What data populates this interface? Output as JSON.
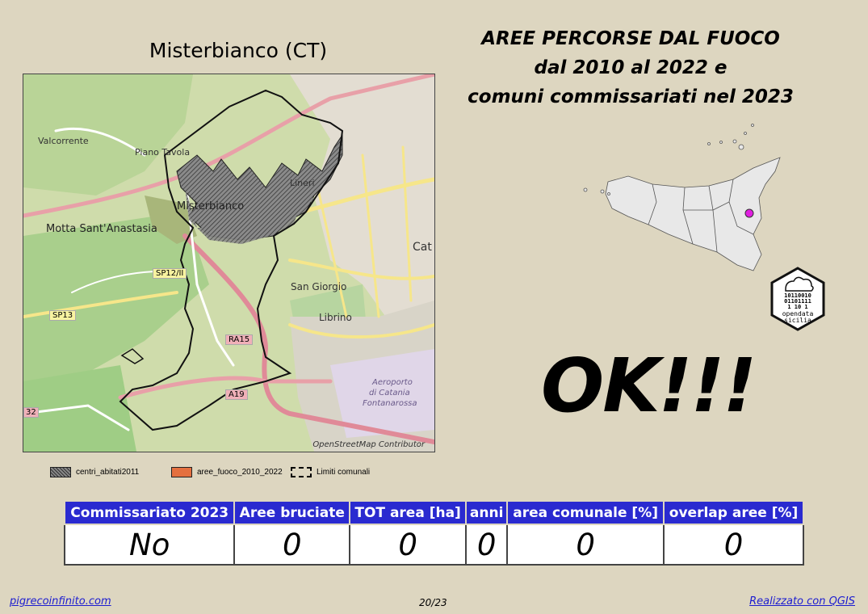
{
  "map": {
    "title": "Misterbianco (CT)",
    "credit": "OpenStreetMap Contributor",
    "place_labels": {
      "valcorrente": "Valcorrente",
      "piano_tavola": "Piano Tavola",
      "misterbianco": "Misterbianco",
      "motta": "Motta Sant'Anastasia",
      "lineri": "Lineri",
      "san_giorgio": "San Giorgio",
      "librino": "Librino",
      "catania": "Cat",
      "aeroporto_1": "Aeroporto",
      "aeroporto_2": "di Catania",
      "aeroporto_3": "Fontanarossa"
    },
    "road_labels": {
      "sp12": "SP12/II",
      "sp13": "SP13",
      "ra15": "RA15",
      "a19": "A19",
      "b2": "32"
    }
  },
  "legend": [
    {
      "label": "centri_abitati2011"
    },
    {
      "label": "aree_fuoco_2010_2022"
    },
    {
      "label": "Limiti comunali"
    }
  ],
  "title_lines": [
    "AREE PERCORSE DAL FUOCO",
    "dal 2010 al 2022 e",
    "comuni commissariati nel 2023"
  ],
  "logo": {
    "bits_1": "10110010",
    "bits_2": "01101111",
    "bits_3": "1   10 1",
    "name_1": "opendata",
    "name_2": "sicilia"
  },
  "status_text": "OK!!!",
  "table": {
    "headers": [
      "Commissariato 2023",
      "Aree bruciate",
      "TOT area [ha]",
      "anni",
      "area comunale [%]",
      "overlap aree [%]"
    ],
    "values": [
      "No",
      "0",
      "0",
      "0",
      "0",
      "0"
    ]
  },
  "footer": {
    "left": "pigrecoinfinito.com",
    "center": "20/23",
    "right": "Realizzato con QGIS"
  },
  "colors": {
    "header_bg": "#2a2ad0",
    "background": "#ddd6c0",
    "marker": "#e020e0"
  }
}
